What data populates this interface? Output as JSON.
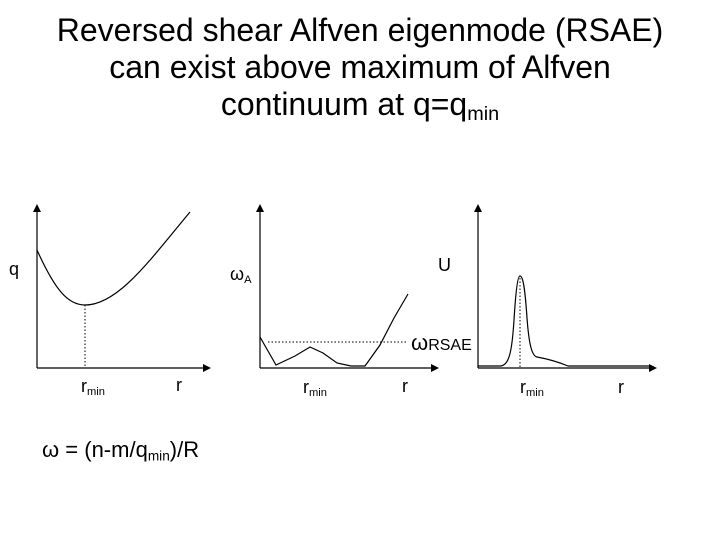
{
  "title": {
    "line1": "Reversed shear Alfven eigenmode (RSAE)",
    "line2": "can exist above maximum of Alfven",
    "line3_main": "continuum at q=q",
    "line3_sub": "min"
  },
  "panel_q": {
    "ylabel": "q",
    "tick_rmin_main": "r",
    "tick_rmin_sub": "min",
    "xlabel": "r"
  },
  "panel_omega": {
    "ylabel_main": "ω",
    "ylabel_sub": "A",
    "level_label_main": "ω",
    "level_label_sub": "RSAE",
    "tick_rmin_main": "r",
    "tick_rmin_sub": "min",
    "xlabel": "r"
  },
  "panel_u": {
    "ylabel": "U",
    "tick_rmin_main": "r",
    "tick_rmin_sub": "min",
    "xlabel": "r"
  },
  "formula": {
    "part1": "ω = (n-m/q",
    "sub": "min",
    "part2": ")/R"
  }
}
